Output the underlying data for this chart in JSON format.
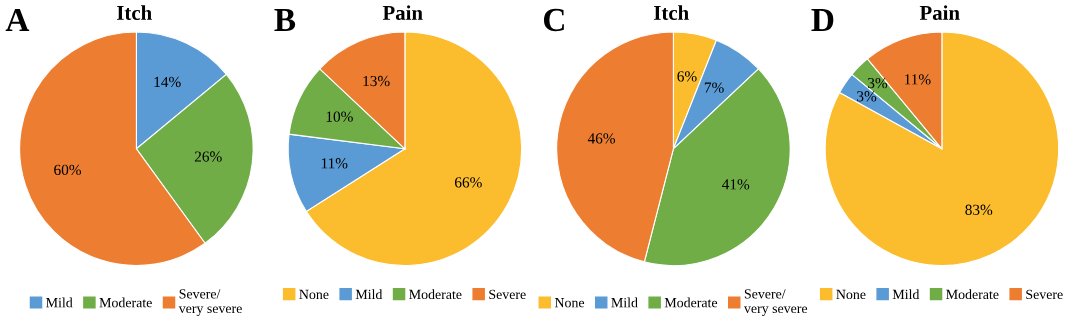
{
  "chart_data": [
    {
      "type": "pie",
      "title": "Itch",
      "annotations": [
        "A"
      ],
      "categories": [
        "Mild",
        "Moderate",
        "Severe/\nvery severe"
      ],
      "values": [
        14,
        26,
        60
      ],
      "value_labels": [
        "14%",
        "26%",
        "60%"
      ],
      "colors": [
        "#5b9bd5",
        "#70ad47",
        "#ed7d31"
      ],
      "legend": "bottom"
    },
    {
      "type": "pie",
      "title": "Pain",
      "annotations": [
        "B"
      ],
      "categories": [
        "None",
        "Mild",
        "Moderate",
        "Severe"
      ],
      "values": [
        66,
        11,
        10,
        13
      ],
      "value_labels": [
        "66%",
        "11%",
        "10%",
        "13%"
      ],
      "colors": [
        "#fbbc2e",
        "#5b9bd5",
        "#70ad47",
        "#ed7d31"
      ],
      "legend": "bottom"
    },
    {
      "type": "pie",
      "title": "Itch",
      "annotations": [
        "C"
      ],
      "categories": [
        "None",
        "Mild",
        "Moderate",
        "Severe/\nvery severe"
      ],
      "values": [
        6,
        7,
        41,
        46
      ],
      "value_labels": [
        "6%",
        "7%",
        "41%",
        "46%"
      ],
      "colors": [
        "#fbbc2e",
        "#5b9bd5",
        "#70ad47",
        "#ed7d31"
      ],
      "legend": "bottom"
    },
    {
      "type": "pie",
      "title": "Pain",
      "annotations": [
        "D"
      ],
      "categories": [
        "None",
        "Mild",
        "Moderate",
        "Severe"
      ],
      "values": [
        83,
        3,
        3,
        11
      ],
      "value_labels": [
        "83%",
        "3%",
        "3%",
        "11%"
      ],
      "colors": [
        "#fbbc2e",
        "#5b9bd5",
        "#70ad47",
        "#ed7d31"
      ],
      "legend": "bottom"
    }
  ]
}
